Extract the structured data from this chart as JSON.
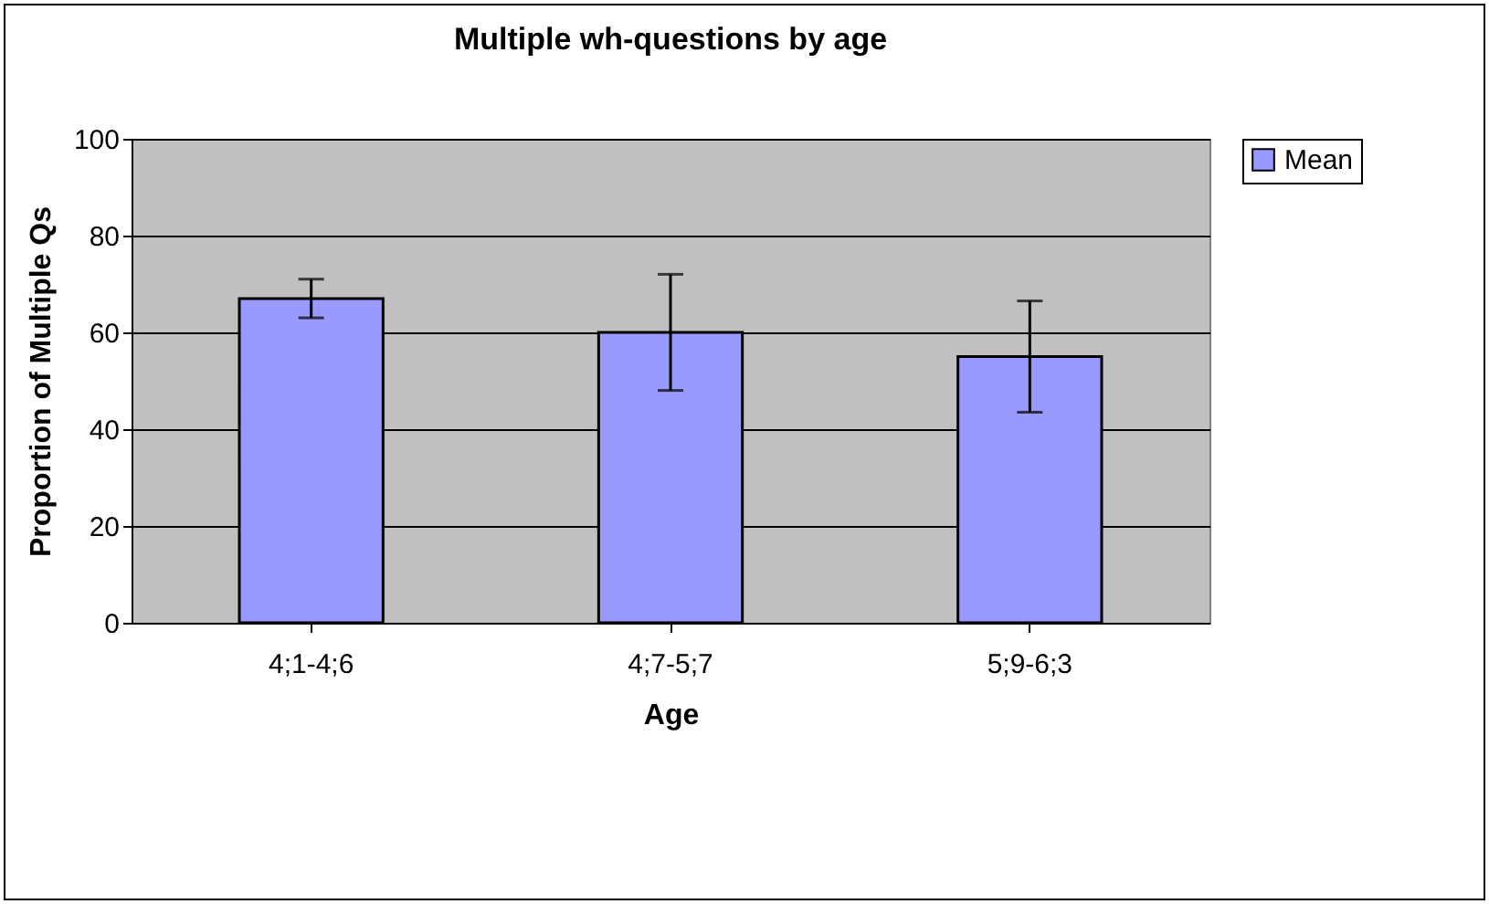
{
  "chart_data": {
    "type": "bar",
    "title": "Multiple wh-questions by age",
    "xlabel": "Age",
    "ylabel": "Proportion of Multiple Qs",
    "categories": [
      "4;1-4;6",
      "4;7-5;7",
      "5;9-6;3"
    ],
    "series": [
      {
        "name": "Mean",
        "color": "#9999ff",
        "values": [
          67,
          60,
          55
        ],
        "errors": [
          4,
          12,
          11.5
        ]
      }
    ],
    "ylim": [
      0,
      100
    ],
    "yticks": [
      0,
      20,
      40,
      60,
      80,
      100
    ],
    "grid": "y",
    "legend": "right"
  }
}
